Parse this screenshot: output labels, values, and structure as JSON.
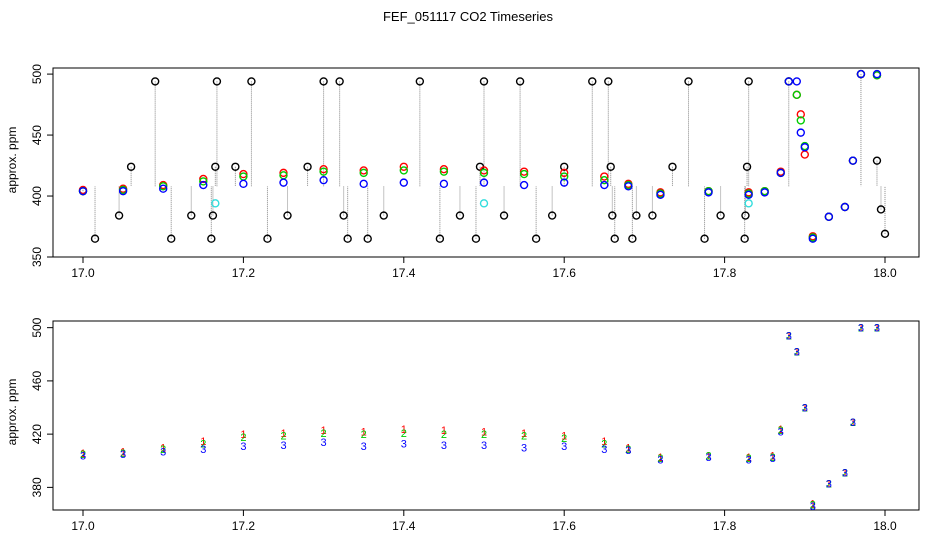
{
  "figure": {
    "title": "FEF_051117  CO2 Timeseries"
  },
  "colors": {
    "black": "#000000",
    "red": "#ff0000",
    "green": "#00cc00",
    "blue": "#0000ff",
    "cyan": "#33dddd",
    "spike": "#888888"
  },
  "chart_data": [
    {
      "type": "scatter",
      "title": "",
      "xlabel": "",
      "ylabel": "approx. ppm",
      "xlim": [
        17.0,
        18.0
      ],
      "ylim": [
        350,
        505
      ],
      "x_ticks": [
        17.0,
        17.2,
        17.4,
        17.6,
        17.8,
        18.0
      ],
      "x_tick_labels": [
        "17.0",
        "17.2",
        "17.4",
        "17.6",
        "17.8",
        "18.0"
      ],
      "y_ticks": [
        350,
        400,
        450,
        500
      ],
      "y_tick_labels": [
        "350",
        "400",
        "450",
        "500"
      ],
      "grid": false,
      "marker": "open-circle",
      "spikes_from_black": true,
      "series": [
        {
          "color": "black",
          "points": [
            [
              17.0,
              404
            ],
            [
              17.015,
              365
            ],
            [
              17.045,
              384
            ],
            [
              17.06,
              424
            ],
            [
              17.09,
              494
            ],
            [
              17.11,
              365
            ],
            [
              17.135,
              384
            ],
            [
              17.16,
              365
            ],
            [
              17.162,
              384
            ],
            [
              17.165,
              424
            ],
            [
              17.167,
              494
            ],
            [
              17.19,
              424
            ],
            [
              17.21,
              494
            ],
            [
              17.23,
              365
            ],
            [
              17.255,
              384
            ],
            [
              17.28,
              424
            ],
            [
              17.3,
              494
            ],
            [
              17.32,
              494
            ],
            [
              17.325,
              384
            ],
            [
              17.33,
              365
            ],
            [
              17.355,
              365
            ],
            [
              17.375,
              384
            ],
            [
              17.42,
              494
            ],
            [
              17.445,
              365
            ],
            [
              17.47,
              384
            ],
            [
              17.49,
              365
            ],
            [
              17.495,
              424
            ],
            [
              17.5,
              494
            ],
            [
              17.525,
              384
            ],
            [
              17.545,
              494
            ],
            [
              17.565,
              365
            ],
            [
              17.585,
              384
            ],
            [
              17.6,
              424
            ],
            [
              17.635,
              494
            ],
            [
              17.655,
              494
            ],
            [
              17.658,
              424
            ],
            [
              17.66,
              384
            ],
            [
              17.663,
              365
            ],
            [
              17.685,
              365
            ],
            [
              17.69,
              384
            ],
            [
              17.71,
              384
            ],
            [
              17.735,
              424
            ],
            [
              17.755,
              494
            ],
            [
              17.775,
              365
            ],
            [
              17.795,
              384
            ],
            [
              17.825,
              365
            ],
            [
              17.826,
              384
            ],
            [
              17.828,
              424
            ],
            [
              17.83,
              494
            ],
            [
              17.88,
              494
            ],
            [
              17.97,
              500
            ],
            [
              17.99,
              429
            ],
            [
              17.995,
              389
            ],
            [
              18.0,
              369
            ]
          ]
        },
        {
          "color": "red",
          "points": [
            [
              17.0,
              405
            ],
            [
              17.05,
              406
            ],
            [
              17.1,
              409
            ],
            [
              17.15,
              414
            ],
            [
              17.2,
              418
            ],
            [
              17.25,
              419
            ],
            [
              17.3,
              422
            ],
            [
              17.35,
              421
            ],
            [
              17.4,
              424
            ],
            [
              17.45,
              422
            ],
            [
              17.5,
              421
            ],
            [
              17.55,
              420
            ],
            [
              17.6,
              419
            ],
            [
              17.65,
              416
            ],
            [
              17.68,
              410
            ],
            [
              17.72,
              403
            ],
            [
              17.78,
              404
            ],
            [
              17.83,
              403
            ],
            [
              17.85,
              404
            ],
            [
              17.87,
              420
            ],
            [
              17.88,
              494
            ],
            [
              17.89,
              483
            ],
            [
              17.895,
              467
            ],
            [
              17.9,
              434
            ],
            [
              17.91,
              367
            ],
            [
              17.93,
              383
            ],
            [
              17.95,
              391
            ],
            [
              17.96,
              429
            ],
            [
              17.97,
              500
            ],
            [
              17.99,
              499
            ]
          ]
        },
        {
          "color": "green",
          "points": [
            [
              17.0,
              404
            ],
            [
              17.05,
              405
            ],
            [
              17.1,
              408
            ],
            [
              17.15,
              412
            ],
            [
              17.2,
              416
            ],
            [
              17.25,
              417
            ],
            [
              17.3,
              420
            ],
            [
              17.35,
              419
            ],
            [
              17.4,
              421
            ],
            [
              17.45,
              420
            ],
            [
              17.5,
              419
            ],
            [
              17.55,
              418
            ],
            [
              17.6,
              416
            ],
            [
              17.65,
              413
            ],
            [
              17.68,
              409
            ],
            [
              17.72,
              402
            ],
            [
              17.78,
              404
            ],
            [
              17.83,
              402
            ],
            [
              17.85,
              404
            ],
            [
              17.87,
              419
            ],
            [
              17.88,
              494
            ],
            [
              17.89,
              483
            ],
            [
              17.895,
              462
            ],
            [
              17.9,
              441
            ],
            [
              17.91,
              366
            ],
            [
              17.93,
              383
            ],
            [
              17.95,
              391
            ],
            [
              17.96,
              429
            ],
            [
              17.97,
              500
            ],
            [
              17.99,
              499
            ]
          ]
        },
        {
          "color": "blue",
          "points": [
            [
              17.0,
              404
            ],
            [
              17.05,
              404
            ],
            [
              17.1,
              406
            ],
            [
              17.15,
              409
            ],
            [
              17.2,
              410
            ],
            [
              17.25,
              411
            ],
            [
              17.3,
              413
            ],
            [
              17.35,
              410
            ],
            [
              17.4,
              411
            ],
            [
              17.45,
              410
            ],
            [
              17.5,
              411
            ],
            [
              17.55,
              409
            ],
            [
              17.6,
              411
            ],
            [
              17.65,
              409
            ],
            [
              17.68,
              408
            ],
            [
              17.72,
              401
            ],
            [
              17.78,
              403
            ],
            [
              17.83,
              401
            ],
            [
              17.85,
              403
            ],
            [
              17.87,
              419
            ],
            [
              17.88,
              494
            ],
            [
              17.89,
              494
            ],
            [
              17.895,
              452
            ],
            [
              17.9,
              440
            ],
            [
              17.91,
              365
            ],
            [
              17.93,
              383
            ],
            [
              17.95,
              391
            ],
            [
              17.96,
              429
            ],
            [
              17.97,
              500
            ],
            [
              17.99,
              500
            ]
          ]
        },
        {
          "color": "cyan",
          "points": [
            [
              17.165,
              394
            ],
            [
              17.5,
              394
            ],
            [
              17.83,
              394
            ]
          ]
        }
      ]
    },
    {
      "type": "scatter",
      "title": "",
      "xlabel": "",
      "ylabel": "approx. ppm",
      "xlim": [
        17.0,
        18.0
      ],
      "ylim": [
        363,
        505
      ],
      "x_ticks": [
        17.0,
        17.2,
        17.4,
        17.6,
        17.8,
        18.0
      ],
      "x_tick_labels": [
        "17.0",
        "17.2",
        "17.4",
        "17.6",
        "17.8",
        "18.0"
      ],
      "y_ticks": [
        380,
        420,
        460,
        500
      ],
      "y_tick_labels": [
        "380",
        "420",
        "460",
        "500"
      ],
      "grid": false,
      "marker": "numbered",
      "series": [
        {
          "color": "red",
          "label": "1",
          "points": [
            [
              17.0,
              406
            ],
            [
              17.05,
              407
            ],
            [
              17.1,
              410
            ],
            [
              17.15,
              415
            ],
            [
              17.2,
              420
            ],
            [
              17.25,
              421
            ],
            [
              17.3,
              423
            ],
            [
              17.35,
              422
            ],
            [
              17.4,
              424
            ],
            [
              17.45,
              423
            ],
            [
              17.5,
              422
            ],
            [
              17.55,
              421
            ],
            [
              17.6,
              419
            ],
            [
              17.65,
              415
            ],
            [
              17.68,
              410
            ],
            [
              17.72,
              403
            ],
            [
              17.78,
              404
            ],
            [
              17.83,
              403
            ],
            [
              17.86,
              404
            ],
            [
              17.87,
              424
            ],
            [
              17.88,
              494
            ],
            [
              17.89,
              482
            ],
            [
              17.9,
              440
            ],
            [
              17.91,
              368
            ],
            [
              17.93,
              383
            ],
            [
              17.95,
              391
            ],
            [
              17.96,
              429
            ],
            [
              17.97,
              500
            ],
            [
              17.99,
              500
            ]
          ]
        },
        {
          "color": "green",
          "label": "2",
          "points": [
            [
              17.0,
              405
            ],
            [
              17.05,
              406
            ],
            [
              17.1,
              409
            ],
            [
              17.15,
              413
            ],
            [
              17.2,
              418
            ],
            [
              17.25,
              419
            ],
            [
              17.3,
              421
            ],
            [
              17.35,
              420
            ],
            [
              17.4,
              421
            ],
            [
              17.45,
              420
            ],
            [
              17.5,
              420
            ],
            [
              17.55,
              419
            ],
            [
              17.6,
              417
            ],
            [
              17.65,
              413
            ],
            [
              17.68,
              409
            ],
            [
              17.72,
              402
            ],
            [
              17.78,
              404
            ],
            [
              17.83,
              402
            ],
            [
              17.86,
              403
            ],
            [
              17.87,
              423
            ],
            [
              17.88,
              494
            ],
            [
              17.89,
              482
            ],
            [
              17.9,
              440
            ],
            [
              17.91,
              367
            ],
            [
              17.93,
              383
            ],
            [
              17.95,
              391
            ],
            [
              17.96,
              429
            ],
            [
              17.97,
              500
            ],
            [
              17.99,
              500
            ]
          ]
        },
        {
          "color": "blue",
          "label": "3",
          "points": [
            [
              17.0,
              404
            ],
            [
              17.05,
              405
            ],
            [
              17.1,
              407
            ],
            [
              17.15,
              409
            ],
            [
              17.2,
              411
            ],
            [
              17.25,
              412
            ],
            [
              17.3,
              414
            ],
            [
              17.35,
              411
            ],
            [
              17.4,
              413
            ],
            [
              17.45,
              412
            ],
            [
              17.5,
              412
            ],
            [
              17.55,
              410
            ],
            [
              17.6,
              411
            ],
            [
              17.65,
              409
            ],
            [
              17.68,
              408
            ],
            [
              17.72,
              401
            ],
            [
              17.78,
              403
            ],
            [
              17.83,
              401
            ],
            [
              17.86,
              402
            ],
            [
              17.87,
              422
            ],
            [
              17.88,
              494
            ],
            [
              17.89,
              482
            ],
            [
              17.9,
              440
            ],
            [
              17.91,
              366
            ],
            [
              17.93,
              383
            ],
            [
              17.95,
              391
            ],
            [
              17.96,
              429
            ],
            [
              17.97,
              500
            ],
            [
              17.99,
              500
            ]
          ]
        }
      ]
    }
  ]
}
